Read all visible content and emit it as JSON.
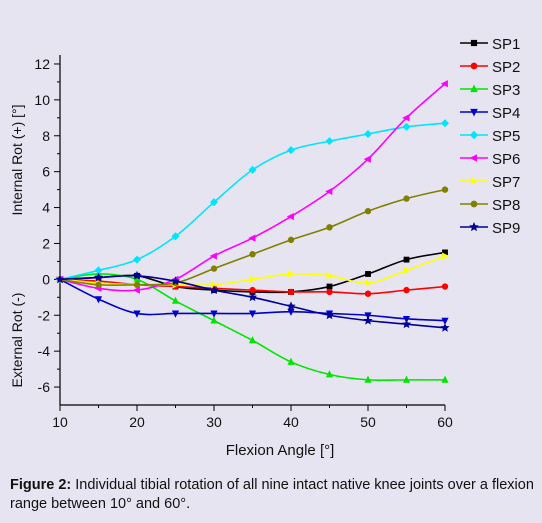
{
  "chart_data": {
    "type": "line",
    "xlabel": "Flexion Angle   [°]",
    "ylabel_top": "Internal Rot (+)   [°]",
    "ylabel_bottom": "External Rot (-)",
    "xlim": [
      10,
      60
    ],
    "ylim": [
      -7,
      12.5
    ],
    "xticks": [
      10,
      20,
      30,
      40,
      50,
      60
    ],
    "yticks": [
      -6,
      -4,
      -2,
      0,
      2,
      4,
      6,
      8,
      10,
      12
    ],
    "grid": false,
    "legend_position": "right",
    "x": [
      10,
      15,
      20,
      25,
      30,
      35,
      40,
      45,
      50,
      55,
      60
    ],
    "series": [
      {
        "name": "SP1",
        "color": "#000000",
        "marker": "square",
        "values": [
          0,
          0.1,
          0.2,
          -0.4,
          -0.6,
          -0.7,
          -0.7,
          -0.4,
          0.3,
          1.1,
          1.5
        ]
      },
      {
        "name": "SP2",
        "color": "#ff0000",
        "marker": "circle",
        "values": [
          0,
          -0.1,
          -0.3,
          -0.4,
          -0.5,
          -0.6,
          -0.7,
          -0.7,
          -0.8,
          -0.6,
          -0.4
        ]
      },
      {
        "name": "SP3",
        "color": "#00e600",
        "marker": "triangle-up",
        "values": [
          0,
          0.3,
          0,
          -1.2,
          -2.3,
          -3.4,
          -4.6,
          -5.3,
          -5.6,
          -5.6,
          -5.6
        ]
      },
      {
        "name": "SP4",
        "color": "#0000cc",
        "marker": "triangle-down",
        "values": [
          0,
          -1.1,
          -1.9,
          -1.9,
          -1.9,
          -1.9,
          -1.8,
          -1.9,
          -2.0,
          -2.2,
          -2.3
        ]
      },
      {
        "name": "SP5",
        "color": "#00e5ff",
        "marker": "diamond",
        "values": [
          0,
          0.5,
          1.1,
          2.4,
          4.3,
          6.1,
          7.2,
          7.7,
          8.1,
          8.5,
          8.7
        ]
      },
      {
        "name": "SP6",
        "color": "#ff00ff",
        "marker": "triangle-left",
        "values": [
          0,
          -0.5,
          -0.6,
          0,
          1.3,
          2.3,
          3.5,
          4.9,
          6.7,
          9.0,
          10.9
        ]
      },
      {
        "name": "SP7",
        "color": "#ffff00",
        "marker": "triangle-right",
        "values": [
          0,
          -0.2,
          -0.3,
          -0.3,
          -0.3,
          0,
          0.3,
          0.2,
          -0.2,
          0.5,
          1.3
        ]
      },
      {
        "name": "SP8",
        "color": "#808000",
        "marker": "circle",
        "values": [
          0,
          -0.3,
          -0.3,
          -0.2,
          0.6,
          1.4,
          2.2,
          2.9,
          3.8,
          4.5,
          5.0
        ]
      },
      {
        "name": "SP9",
        "color": "#000099",
        "marker": "star",
        "values": [
          0,
          0.1,
          0.2,
          -0.1,
          -0.6,
          -1.0,
          -1.5,
          -2.0,
          -2.3,
          -2.5,
          -2.7
        ]
      }
    ]
  },
  "caption": {
    "label": "Figure 2:",
    "text": " Individual tibial rotation of all nine intact native knee joints over a flexion range between 10° and 60°."
  }
}
